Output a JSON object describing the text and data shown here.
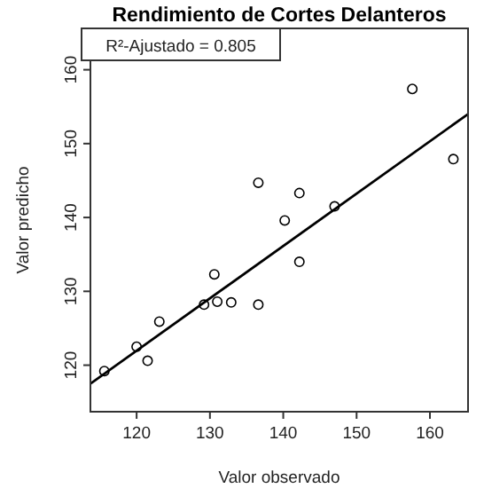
{
  "chart_data": {
    "type": "scatter",
    "title": "Rendimiento de Cortes Delanteros",
    "xlabel": "Valor observado",
    "ylabel": "Valor predicho",
    "annotations": [
      "R²-Ajustado = 0.805"
    ],
    "xlim": [
      113.7,
      165.2
    ],
    "ylim": [
      113.7,
      165.6
    ],
    "xticks": [
      120,
      130,
      140,
      150,
      160
    ],
    "yticks": [
      120,
      130,
      140,
      150,
      160
    ],
    "grid": false,
    "series": [
      {
        "color": "#000000",
        "marker": "circle",
        "x": [
          115.6,
          120,
          121.5,
          123.1,
          129.2,
          130.6,
          131.0,
          132.9,
          136.6,
          140.2,
          142.2,
          136.6,
          142.2,
          147.0,
          157.6,
          163.2
        ],
        "values": [
          119.2,
          122.5,
          120.6,
          125.9,
          128.2,
          132.3,
          128.6,
          128.5,
          128.2,
          139.6,
          134.0,
          144.7,
          143.3,
          141.5,
          157.4,
          147.9
        ]
      },
      {
        "type": "line",
        "color": "#000000",
        "x": [
          113.7,
          165.2
        ],
        "values": [
          117.5,
          154.0
        ],
        "marker": "none",
        "line_style": "solid"
      }
    ]
  }
}
